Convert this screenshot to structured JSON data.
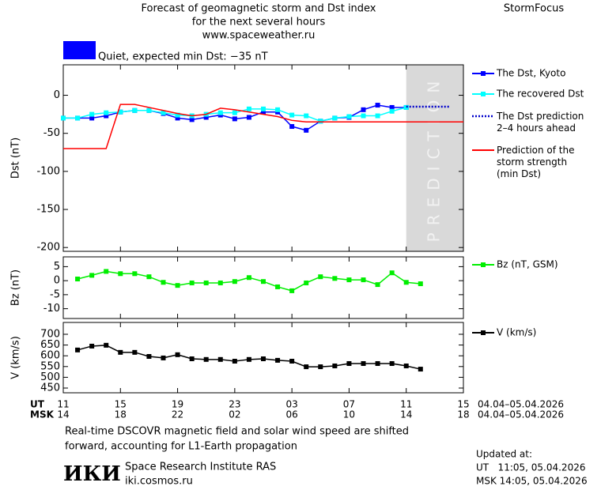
{
  "header": {
    "title_lines": [
      "Forecast of geomagnetic storm and Dst index",
      "for the next several hours",
      "www.spaceweather.ru"
    ],
    "brand": "StormFocus",
    "status": "Quiet, expected min Dst: −35 nT",
    "status_color": "#0000ff"
  },
  "chart_data": [
    {
      "type": "line",
      "y_label": "Dst (nT)",
      "ylim": [
        -205,
        40
      ],
      "yticks": [
        0,
        -50,
        -100,
        -150,
        -200
      ],
      "prediction_label": "PREDICTION",
      "prediction_xlim": [
        24,
        28
      ],
      "prediction_color": "#d9d9d9",
      "series": [
        {
          "name": "The Dst, Kyoto",
          "color": "#0000ff",
          "marker": true,
          "dash": "solid",
          "x": [
            0,
            1,
            2,
            3,
            4,
            5,
            6,
            7,
            8,
            9,
            10,
            11,
            12,
            13,
            14,
            15,
            16,
            17,
            18,
            19,
            20,
            21,
            22,
            23,
            24
          ],
          "values": [
            -30,
            -30,
            -30,
            -27,
            -22,
            -20,
            -20,
            -24,
            -30,
            -32,
            -29,
            -26,
            -31,
            -29,
            -22,
            -22,
            -41,
            -46,
            -34,
            -30,
            -29,
            -19,
            -13,
            -16,
            -16
          ]
        },
        {
          "name": "The recovered Dst",
          "color": "#00ffff",
          "marker": true,
          "dash": "solid",
          "x": [
            0,
            1,
            2,
            3,
            4,
            5,
            6,
            7,
            8,
            9,
            10,
            11,
            12,
            13,
            14,
            15,
            16,
            17,
            18,
            19,
            20,
            21,
            22,
            23,
            24
          ],
          "values": [
            -30,
            -30,
            -25,
            -23,
            -22,
            -20,
            -20,
            -23,
            -26,
            -27,
            -25,
            -23,
            -23,
            -18,
            -18,
            -19,
            -26,
            -27,
            -34,
            -30,
            -28,
            -27,
            -27,
            -21,
            -16
          ]
        },
        {
          "name": "The Dst prediction\n2–4 hours ahead",
          "color": "#0000cc",
          "marker": false,
          "dash": "dotted",
          "x": [
            24,
            25,
            26,
            27
          ],
          "values": [
            -15,
            -15,
            -15,
            -15
          ]
        },
        {
          "name": "Prediction of the\nstorm strength\n(min Dst)",
          "color": "#ff0000",
          "marker": false,
          "dash": "solid",
          "x": [
            0,
            3,
            4,
            5,
            6,
            7,
            8,
            9,
            10,
            11,
            12,
            13,
            14,
            15,
            16,
            17,
            28
          ],
          "values": [
            -70,
            -70,
            -12,
            -12,
            -16,
            -20,
            -24,
            -27,
            -25,
            -17,
            -19,
            -22,
            -25,
            -28,
            -33,
            -35,
            -35
          ]
        }
      ]
    },
    {
      "type": "line",
      "y_label": "Bz (nT)",
      "ylim": [
        -13.5,
        8.5
      ],
      "yticks": [
        5,
        0,
        -5,
        -10
      ],
      "series": [
        {
          "name": "Bz (nT, GSM)",
          "color": "#00ee00",
          "marker": true,
          "dash": "solid",
          "x": [
            1,
            2,
            3,
            4,
            5,
            6,
            7,
            8,
            9,
            10,
            11,
            12,
            13,
            14,
            15,
            16,
            17,
            18,
            19,
            20,
            21,
            22,
            23,
            24,
            25
          ],
          "values": [
            0.6,
            1.9,
            3.3,
            2.5,
            2.5,
            1.4,
            -0.6,
            -1.7,
            -0.8,
            -0.8,
            -0.8,
            -0.3,
            1.1,
            -0.3,
            -2.2,
            -3.6,
            -0.8,
            1.4,
            0.8,
            0.3,
            0.3,
            -1.4,
            2.8,
            -0.6,
            -1.1
          ]
        }
      ]
    },
    {
      "type": "line",
      "y_label": "V (km/s)",
      "ylim": [
        428,
        755
      ],
      "yticks": [
        700,
        650,
        600,
        550,
        500,
        450
      ],
      "xlim": [
        0,
        28
      ],
      "x_label": "UT",
      "x2_label": "MSK",
      "xticks": [
        {
          "value": 0,
          "label": "11"
        },
        {
          "value": 4,
          "label": "15"
        },
        {
          "value": 8,
          "label": "19"
        },
        {
          "value": 12,
          "label": "23"
        },
        {
          "value": 16,
          "label": "03"
        },
        {
          "value": 20,
          "label": "07"
        },
        {
          "value": 24,
          "label": "11"
        },
        {
          "value": 28,
          "label": "15"
        }
      ],
      "xticks_msk": [
        {
          "value": 0,
          "label": "14"
        },
        {
          "value": 4,
          "label": "18"
        },
        {
          "value": 8,
          "label": "22"
        },
        {
          "value": 12,
          "label": "02"
        },
        {
          "value": 16,
          "label": "06"
        },
        {
          "value": 20,
          "label": "10"
        },
        {
          "value": 24,
          "label": "14"
        },
        {
          "value": 28,
          "label": "18"
        }
      ],
      "date_range": "04.04–05.04.2026",
      "series": [
        {
          "name": "V (km/s)",
          "color": "#000000",
          "marker": true,
          "dash": "solid",
          "x": [
            1,
            2,
            3,
            4,
            5,
            6,
            7,
            8,
            9,
            10,
            11,
            12,
            13,
            14,
            15,
            16,
            17,
            18,
            19,
            20,
            21,
            22,
            23,
            24,
            25
          ],
          "values": [
            627,
            645,
            649,
            616,
            616,
            597,
            590,
            605,
            586,
            583,
            583,
            575,
            583,
            586,
            579,
            575,
            549,
            549,
            553,
            564,
            564,
            564,
            564,
            553,
            538
          ]
        }
      ]
    }
  ],
  "footer": {
    "note_lines": [
      "Real-time DSCOVR magnetic field and solar wind speed are shifted",
      "forward, accounting for L1-Earth propagation"
    ],
    "logo": "ИКИ",
    "institute": "Space Research Institute RAS",
    "url": "iki.cosmos.ru",
    "updated_lines": [
      "Updated at:",
      "UT   11:05, 05.04.2026",
      "MSK 14:05, 05.04.2026"
    ]
  }
}
